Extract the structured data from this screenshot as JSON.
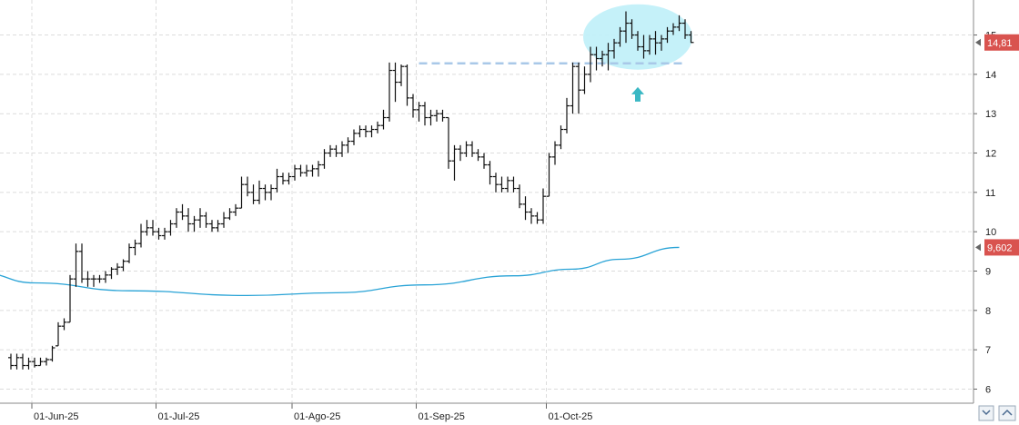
{
  "chart_data": {
    "type": "ohlc-bar",
    "title": "",
    "xlabel": "",
    "ylabel": "",
    "ylim": [
      5.8,
      16.0
    ],
    "y_ticks": [
      "6",
      "7",
      "8",
      "9",
      "10",
      "11",
      "12",
      "13",
      "14",
      "15"
    ],
    "x_ticks": [
      {
        "label": "01-Jun-25",
        "i": 4
      },
      {
        "label": "01-Jul-25",
        "i": 25
      },
      {
        "label": "01-Ago-25",
        "i": 48
      },
      {
        "label": "01-Sep-25",
        "i": 69
      },
      {
        "label": "01-Oct-25",
        "i": 91
      }
    ],
    "grid": true,
    "price_tags": [
      {
        "label": "14,81",
        "value": 14.81,
        "color": "#d9534f"
      },
      {
        "label": "9,602",
        "value": 9.602,
        "color": "#d9534f"
      }
    ],
    "moving_average": {
      "color": "#29a3d6",
      "points": [
        [
          -5,
          8.95
        ],
        [
          4,
          8.7
        ],
        [
          20,
          8.5
        ],
        [
          40,
          8.38
        ],
        [
          55,
          8.45
        ],
        [
          70,
          8.65
        ],
        [
          85,
          8.88
        ],
        [
          95,
          9.05
        ],
        [
          103,
          9.3
        ],
        [
          113,
          9.602
        ]
      ]
    },
    "resistance_level": {
      "value": 14.28,
      "from": 69,
      "to": 113,
      "color": "#a9c8e8"
    },
    "highlight": {
      "cx": 106,
      "cy": 14.95,
      "color": "#bff0f8"
    },
    "arrow": {
      "i": 106,
      "value": 13.4,
      "color": "#3ab8c4"
    },
    "ohlc": [
      [
        6.8,
        6.9,
        6.5,
        6.6
      ],
      [
        6.6,
        6.9,
        6.5,
        6.8
      ],
      [
        6.8,
        6.9,
        6.5,
        6.6
      ],
      [
        6.6,
        6.8,
        6.5,
        6.7
      ],
      [
        6.7,
        6.8,
        6.55,
        6.6
      ],
      [
        6.6,
        6.8,
        6.6,
        6.7
      ],
      [
        6.7,
        6.8,
        6.6,
        6.75
      ],
      [
        6.75,
        7.1,
        6.7,
        7.05
      ],
      [
        7.1,
        7.7,
        7.1,
        7.6
      ],
      [
        7.6,
        7.8,
        7.5,
        7.7
      ],
      [
        7.7,
        8.9,
        7.7,
        8.8
      ],
      [
        8.8,
        9.7,
        8.6,
        9.5
      ],
      [
        9.5,
        9.7,
        8.7,
        8.8
      ],
      [
        8.8,
        9.0,
        8.6,
        8.8
      ],
      [
        8.8,
        8.9,
        8.6,
        8.8
      ],
      [
        8.8,
        8.9,
        8.7,
        8.8
      ],
      [
        8.8,
        9.0,
        8.7,
        8.9
      ],
      [
        8.9,
        9.1,
        8.8,
        9.05
      ],
      [
        9.05,
        9.2,
        8.9,
        9.1
      ],
      [
        9.1,
        9.3,
        9.0,
        9.25
      ],
      [
        9.25,
        9.7,
        9.2,
        9.6
      ],
      [
        9.6,
        9.8,
        9.4,
        9.7
      ],
      [
        9.7,
        10.2,
        9.6,
        10.0
      ],
      [
        10.0,
        10.3,
        9.9,
        10.1
      ],
      [
        10.1,
        10.3,
        9.9,
        10.0
      ],
      [
        10.0,
        10.1,
        9.8,
        9.9
      ],
      [
        9.9,
        10.1,
        9.8,
        10.0
      ],
      [
        10.0,
        10.3,
        9.9,
        10.2
      ],
      [
        10.2,
        10.6,
        10.1,
        10.5
      ],
      [
        10.5,
        10.7,
        10.3,
        10.4
      ],
      [
        10.4,
        10.6,
        10.0,
        10.2
      ],
      [
        10.2,
        10.4,
        10.0,
        10.3
      ],
      [
        10.3,
        10.6,
        10.1,
        10.4
      ],
      [
        10.4,
        10.5,
        10.1,
        10.2
      ],
      [
        10.2,
        10.3,
        10.0,
        10.1
      ],
      [
        10.1,
        10.3,
        10.0,
        10.2
      ],
      [
        10.2,
        10.5,
        10.1,
        10.35
      ],
      [
        10.35,
        10.6,
        10.3,
        10.5
      ],
      [
        10.5,
        10.7,
        10.4,
        10.6
      ],
      [
        10.6,
        11.4,
        10.6,
        11.2
      ],
      [
        11.2,
        11.4,
        10.9,
        11.0
      ],
      [
        11.0,
        11.2,
        10.7,
        10.8
      ],
      [
        10.8,
        11.3,
        10.7,
        11.1
      ],
      [
        11.1,
        11.2,
        10.8,
        11.0
      ],
      [
        11.0,
        11.2,
        10.8,
        11.1
      ],
      [
        11.1,
        11.6,
        11.0,
        11.4
      ],
      [
        11.4,
        11.5,
        11.2,
        11.3
      ],
      [
        11.3,
        11.5,
        11.2,
        11.4
      ],
      [
        11.4,
        11.7,
        11.3,
        11.6
      ],
      [
        11.6,
        11.7,
        11.4,
        11.5
      ],
      [
        11.5,
        11.7,
        11.4,
        11.55
      ],
      [
        11.55,
        11.7,
        11.4,
        11.6
      ],
      [
        11.6,
        11.8,
        11.4,
        11.7
      ],
      [
        11.7,
        12.1,
        11.6,
        12.0
      ],
      [
        12.0,
        12.2,
        11.9,
        12.1
      ],
      [
        12.1,
        12.2,
        11.9,
        12.0
      ],
      [
        12.0,
        12.3,
        11.9,
        12.2
      ],
      [
        12.2,
        12.4,
        12.0,
        12.3
      ],
      [
        12.3,
        12.6,
        12.2,
        12.5
      ],
      [
        12.5,
        12.7,
        12.4,
        12.6
      ],
      [
        12.6,
        12.7,
        12.4,
        12.55
      ],
      [
        12.55,
        12.7,
        12.4,
        12.6
      ],
      [
        12.6,
        12.8,
        12.5,
        12.7
      ],
      [
        12.7,
        13.1,
        12.6,
        12.9
      ],
      [
        12.9,
        14.3,
        12.8,
        14.1
      ],
      [
        14.1,
        14.3,
        13.3,
        13.8
      ],
      [
        13.8,
        14.25,
        13.7,
        14.2
      ],
      [
        14.2,
        14.25,
        13.2,
        13.4
      ],
      [
        13.4,
        13.5,
        12.9,
        13.1
      ],
      [
        13.1,
        13.3,
        12.8,
        13.2
      ],
      [
        13.2,
        13.3,
        12.7,
        12.9
      ],
      [
        12.9,
        13.1,
        12.7,
        12.95
      ],
      [
        12.95,
        13.1,
        12.8,
        13.0
      ],
      [
        13.0,
        13.1,
        12.8,
        12.9
      ],
      [
        12.9,
        12.9,
        11.6,
        11.8
      ],
      [
        11.8,
        12.2,
        11.3,
        12.1
      ],
      [
        12.1,
        12.2,
        11.8,
        12.0
      ],
      [
        12.0,
        12.3,
        11.9,
        12.2
      ],
      [
        12.2,
        12.3,
        11.9,
        12.0
      ],
      [
        12.0,
        12.1,
        11.8,
        11.9
      ],
      [
        11.9,
        12.0,
        11.6,
        11.7
      ],
      [
        11.7,
        11.8,
        11.2,
        11.4
      ],
      [
        11.4,
        11.5,
        11.0,
        11.2
      ],
      [
        11.2,
        11.4,
        11.0,
        11.1
      ],
      [
        11.1,
        11.4,
        11.0,
        11.3
      ],
      [
        11.3,
        11.4,
        11.0,
        11.1
      ],
      [
        11.1,
        11.2,
        10.6,
        10.7
      ],
      [
        10.7,
        10.9,
        10.3,
        10.5
      ],
      [
        10.5,
        10.6,
        10.2,
        10.4
      ],
      [
        10.4,
        10.5,
        10.2,
        10.3
      ],
      [
        10.3,
        11.1,
        10.2,
        10.9
      ],
      [
        10.9,
        12.0,
        10.9,
        11.9
      ],
      [
        11.9,
        12.3,
        11.7,
        12.2
      ],
      [
        12.2,
        12.7,
        12.1,
        12.6
      ],
      [
        12.6,
        13.4,
        12.5,
        13.2
      ],
      [
        13.2,
        14.3,
        13.0,
        14.2
      ],
      [
        14.2,
        14.3,
        13.0,
        13.6
      ],
      [
        13.6,
        14.2,
        13.5,
        14.0
      ],
      [
        14.0,
        14.7,
        13.8,
        14.5
      ],
      [
        14.5,
        14.7,
        14.1,
        14.4
      ],
      [
        14.4,
        14.6,
        14.2,
        14.5
      ],
      [
        14.5,
        14.8,
        14.1,
        14.6
      ],
      [
        14.6,
        14.9,
        14.4,
        14.8
      ],
      [
        14.8,
        15.2,
        14.7,
        15.1
      ],
      [
        15.1,
        15.6,
        14.8,
        15.3
      ],
      [
        15.3,
        15.4,
        14.9,
        15.0
      ],
      [
        15.0,
        15.1,
        14.6,
        14.7
      ],
      [
        14.7,
        15.0,
        14.4,
        14.6
      ],
      [
        14.6,
        15.0,
        14.5,
        14.9
      ],
      [
        14.9,
        15.1,
        14.5,
        14.8
      ],
      [
        14.8,
        15.0,
        14.6,
        14.9
      ],
      [
        14.9,
        15.2,
        14.8,
        15.1
      ],
      [
        15.1,
        15.3,
        15.0,
        15.2
      ],
      [
        15.2,
        15.5,
        15.1,
        15.3
      ],
      [
        15.3,
        15.4,
        14.9,
        15.0
      ],
      [
        15.0,
        15.1,
        14.8,
        14.81
      ]
    ]
  }
}
